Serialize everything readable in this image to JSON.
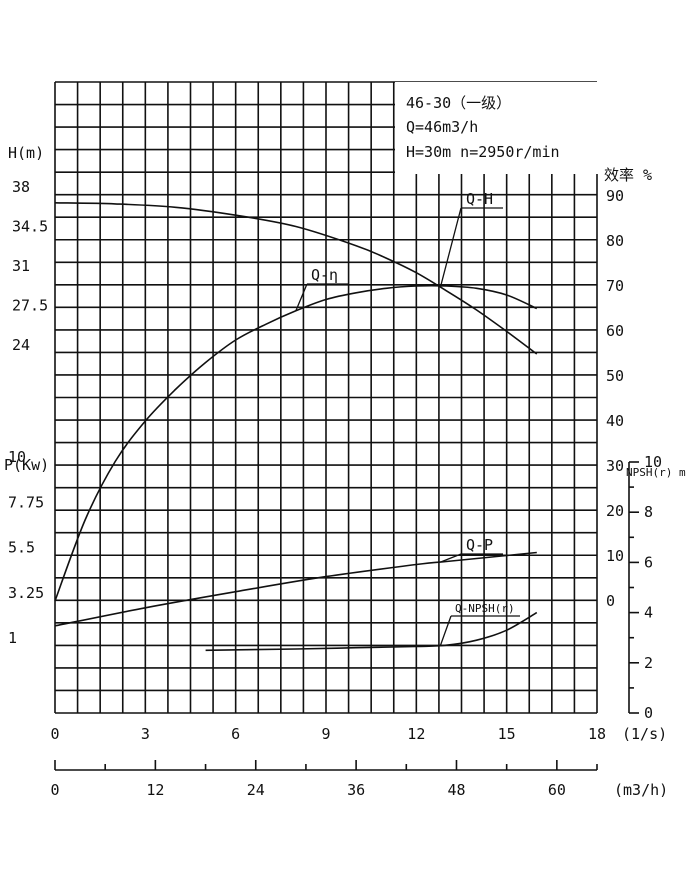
{
  "chart_data": {
    "type": "line",
    "info_box": {
      "model": "46-30（一级）",
      "flow": "Q=46m3/h",
      "head_speed": "H=30m  n=2950r/min"
    },
    "x_axis_ls": {
      "unit": "(1/s)",
      "ticks": [
        "0",
        "3",
        "6",
        "9",
        "12",
        "15",
        "18"
      ],
      "range": [
        0,
        18
      ]
    },
    "x_axis_m3h": {
      "unit": "(m3/h)",
      "ticks": [
        "0",
        "12",
        "24",
        "36",
        "48",
        "60"
      ],
      "range": [
        0,
        64.8
      ]
    },
    "head_axis": {
      "label": "H(m)",
      "ticks": [
        "38",
        "34.5",
        "31",
        "27.5",
        "24"
      ],
      "values": [
        38,
        34.5,
        31,
        27.5,
        24
      ]
    },
    "power_axis": {
      "label": "P(Kw)",
      "ticks": [
        "10",
        "7.75",
        "5.5",
        "3.25",
        "1"
      ],
      "values": [
        10,
        7.75,
        5.5,
        3.25,
        1
      ]
    },
    "efficiency_axis": {
      "label": "效率 %",
      "ticks": [
        "90",
        "80",
        "70",
        "60",
        "50",
        "40",
        "30",
        "20",
        "10",
        "0"
      ],
      "values": [
        90,
        80,
        70,
        60,
        50,
        40,
        30,
        20,
        10,
        0
      ]
    },
    "npsh_axis": {
      "label": "NPSH(r) m",
      "ticks": [
        "10",
        "8",
        "6",
        "4",
        "2",
        "0"
      ],
      "values": [
        10,
        8,
        6,
        4,
        2,
        0
      ]
    },
    "series": [
      {
        "name": "Q-H",
        "axis": "head",
        "x": [
          0,
          2,
          4,
          6,
          8,
          10,
          11,
          12,
          13,
          14,
          15,
          16
        ],
        "y": [
          37.4,
          37.3,
          37.0,
          36.3,
          35.3,
          33.6,
          32.5,
          31.2,
          29.6,
          27.9,
          26.0,
          24.0
        ]
      },
      {
        "name": "Q-η",
        "axis": "efficiency",
        "x": [
          0,
          1,
          2,
          3,
          4,
          5,
          6,
          7,
          8,
          9,
          10,
          11,
          12,
          13,
          14,
          15,
          16
        ],
        "y": [
          0,
          18,
          31,
          40,
          47,
          53,
          58,
          61.5,
          64.5,
          67,
          68.5,
          69.5,
          70,
          70,
          69.5,
          68,
          65
        ]
      },
      {
        "name": "Q-P",
        "axis": "power",
        "x": [
          0,
          3,
          6,
          9,
          12,
          13,
          14,
          15,
          16
        ],
        "y": [
          2.05,
          2.95,
          3.75,
          4.5,
          5.1,
          5.25,
          5.4,
          5.55,
          5.7
        ]
      },
      {
        "name": "Q-NPSH(r)",
        "axis": "npsh",
        "x": [
          5,
          8,
          10,
          12,
          13,
          14,
          15,
          16
        ],
        "y": [
          2.5,
          2.55,
          2.6,
          2.65,
          2.7,
          2.9,
          3.3,
          4.0
        ]
      }
    ]
  }
}
